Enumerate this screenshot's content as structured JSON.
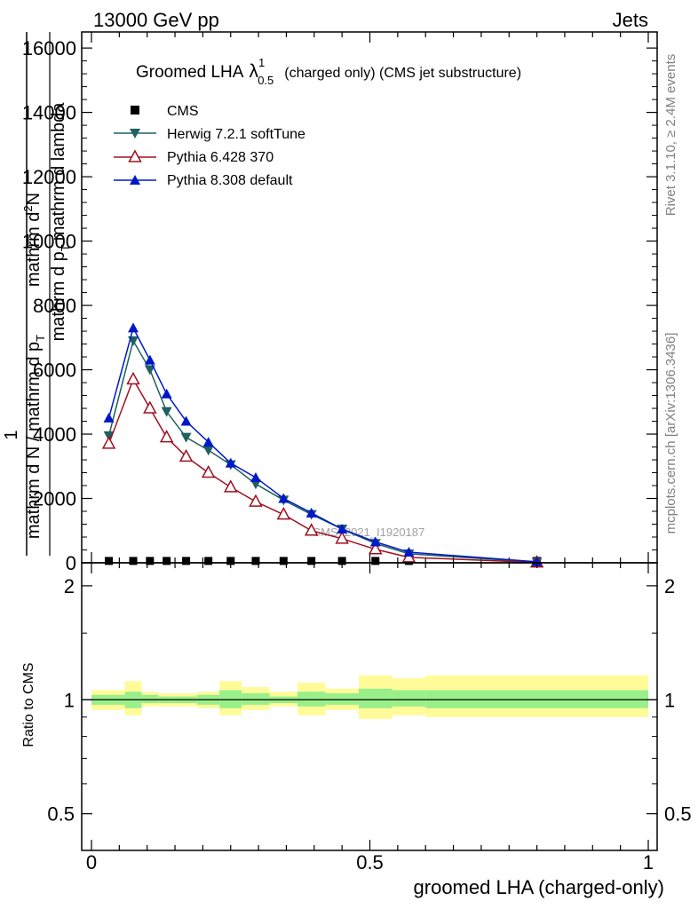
{
  "header": {
    "left": "13000 GeV pp",
    "right": "Jets"
  },
  "side_labels": {
    "rivet": "Rivet 3.1.10, ≥ 2.4M events",
    "mcplots": "mcplots.cern.ch [arXiv:1306.3436]"
  },
  "watermark": "CMS_2021_I1920187",
  "colors": {
    "cms": "#000000",
    "herwig": "#1f6060",
    "pythia6": "#a01020",
    "pythia8": "#0018c8",
    "band_inner": "#99f08a",
    "band_outer": "#fffb99"
  },
  "chart_data": [
    {
      "type": "line",
      "title_main": "Groomed LHA",
      "title_symbol": "λ",
      "title_sup": "1",
      "title_sub": "0.5",
      "title_rest": "(charged only) (CMS jet substructure)",
      "ylabel": "1 / mathrm d N / mathrm d p_T mathrm d^2N / mathrm d p_T mathrm d lambda",
      "ylabel_parts": {
        "one": "1",
        "den1": "mathrm d N / mathrm d p",
        "den1_sub": "T",
        "num": "mathrm d",
        "num_sup": "2",
        "num_tail": "N",
        "den2_a": "mathrm d p",
        "den2_sub": "T",
        "den2_b": "mathrm d lambda"
      },
      "xlim": [
        0,
        1
      ],
      "ylim": [
        0,
        16500
      ],
      "yticks": [
        0,
        2000,
        4000,
        6000,
        8000,
        10000,
        12000,
        14000,
        16000
      ],
      "ytick_labels": [
        "0",
        "2000",
        "4000",
        "6000",
        "8000",
        "10000",
        "12000",
        "14000",
        "16000"
      ],
      "x": [
        0.0312,
        0.075,
        0.105,
        0.135,
        0.17,
        0.21,
        0.25,
        0.295,
        0.345,
        0.395,
        0.45,
        0.51,
        0.57,
        0.8
      ],
      "series": [
        {
          "name": "CMS",
          "marker": "square",
          "values": [
            30,
            30,
            30,
            30,
            30,
            30,
            30,
            30,
            30,
            30,
            30,
            30,
            30,
            30
          ]
        },
        {
          "name": "Herwig 7.2.1 softTune",
          "marker": "triangle-down",
          "values": [
            3950,
            6900,
            6000,
            4700,
            3900,
            3500,
            3050,
            2450,
            1950,
            1500,
            1050,
            600,
            280,
            20
          ]
        },
        {
          "name": "Pythia 6.428 370",
          "marker": "triangle-open",
          "values": [
            3700,
            5700,
            4800,
            3900,
            3300,
            2800,
            2350,
            1900,
            1500,
            1000,
            750,
            420,
            170,
            10
          ]
        },
        {
          "name": "Pythia 8.308 default",
          "marker": "triangle-up",
          "values": [
            4500,
            7300,
            6300,
            5250,
            4400,
            3750,
            3100,
            2650,
            2000,
            1550,
            1050,
            650,
            330,
            30
          ]
        }
      ]
    },
    {
      "type": "area",
      "ylabel": "Ratio to CMS",
      "xlabel": "groomed LHA (charged-only)",
      "xlim": [
        0,
        1
      ],
      "ylim": [
        0.4,
        2.3
      ],
      "log_y": true,
      "xticks": [
        0,
        0.5,
        1
      ],
      "xtick_labels": [
        "0",
        "0.5",
        "1"
      ],
      "yticks": [
        0.5,
        1,
        2
      ],
      "ytick_labels": [
        "0.5",
        "1",
        "2"
      ],
      "bins": [
        [
          0,
          0.06,
          0.97,
          1.03,
          0.94,
          1.06
        ],
        [
          0.06,
          0.09,
          0.95,
          1.05,
          0.91,
          1.12
        ],
        [
          0.09,
          0.12,
          0.98,
          1.03,
          0.96,
          1.05
        ],
        [
          0.12,
          0.15,
          0.98,
          1.02,
          0.96,
          1.04
        ],
        [
          0.15,
          0.19,
          0.98,
          1.02,
          0.96,
          1.04
        ],
        [
          0.19,
          0.23,
          0.97,
          1.03,
          0.95,
          1.05
        ],
        [
          0.23,
          0.27,
          0.95,
          1.06,
          0.91,
          1.12
        ],
        [
          0.27,
          0.32,
          0.97,
          1.04,
          0.94,
          1.08
        ],
        [
          0.32,
          0.37,
          0.98,
          1.02,
          0.96,
          1.05
        ],
        [
          0.37,
          0.42,
          0.96,
          1.05,
          0.91,
          1.11
        ],
        [
          0.42,
          0.48,
          0.97,
          1.04,
          0.94,
          1.07
        ],
        [
          0.48,
          0.54,
          0.95,
          1.07,
          0.89,
          1.16
        ],
        [
          0.54,
          0.6,
          0.96,
          1.06,
          0.91,
          1.14
        ],
        [
          0.6,
          1.0,
          0.95,
          1.06,
          0.9,
          1.16
        ]
      ]
    }
  ]
}
